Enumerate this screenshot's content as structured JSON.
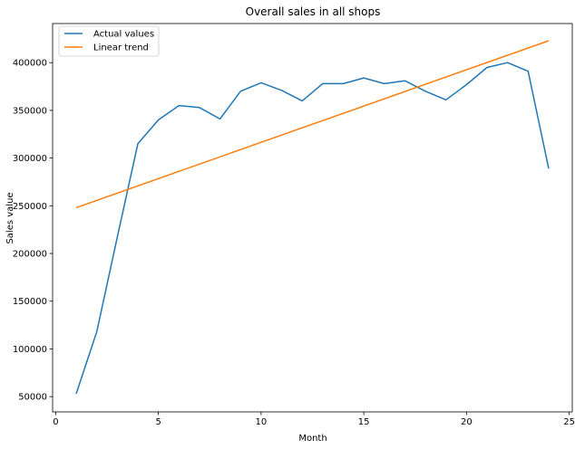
{
  "chart_data": {
    "type": "line",
    "title": "Overall sales in all shops",
    "xlabel": "Month",
    "ylabel": "Sales value",
    "xlim": [
      -0.15,
      25.15
    ],
    "ylim": [
      34000,
      441000
    ],
    "xticks": [
      0,
      5,
      10,
      15,
      20,
      25
    ],
    "yticks": [
      50000,
      100000,
      150000,
      200000,
      250000,
      300000,
      350000,
      400000
    ],
    "grid": false,
    "legend_position": "top-left",
    "series": [
      {
        "name": "Actual values",
        "color": "#1f77b4",
        "x": [
          1,
          2,
          3,
          4,
          5,
          6,
          7,
          8,
          9,
          10,
          11,
          12,
          13,
          14,
          15,
          16,
          17,
          18,
          19,
          20,
          21,
          22,
          23,
          24
        ],
        "values": [
          53000,
          118000,
          217000,
          315000,
          340000,
          355000,
          353000,
          341000,
          370000,
          379000,
          371000,
          360000,
          378000,
          378000,
          384000,
          378000,
          381000,
          370000,
          361000,
          377000,
          395000,
          400000,
          391000,
          289000
        ]
      },
      {
        "name": "Linear trend",
        "color": "#ff7f0e",
        "x": [
          1,
          24
        ],
        "values": [
          248000,
          423000
        ]
      }
    ]
  }
}
